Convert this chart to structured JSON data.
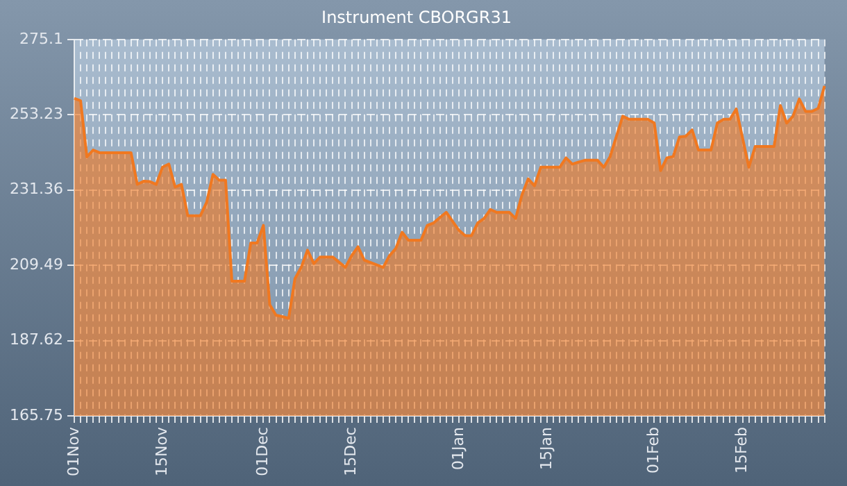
{
  "chart_data": {
    "type": "area",
    "title": "Instrument CBORGR31",
    "categories": [
      "01Nov",
      null,
      null,
      null,
      null,
      null,
      null,
      null,
      null,
      null,
      null,
      null,
      null,
      null,
      "15Nov",
      null,
      null,
      null,
      null,
      null,
      null,
      null,
      null,
      null,
      null,
      null,
      null,
      null,
      null,
      null,
      "01Dec",
      null,
      null,
      null,
      null,
      null,
      null,
      null,
      null,
      null,
      null,
      null,
      null,
      null,
      "15Dec",
      null,
      null,
      null,
      null,
      null,
      null,
      null,
      null,
      null,
      null,
      null,
      null,
      null,
      null,
      null,
      null,
      "01Jan",
      null,
      null,
      null,
      null,
      null,
      null,
      null,
      null,
      null,
      null,
      null,
      null,
      null,
      "15Jan",
      null,
      null,
      null,
      null,
      null,
      null,
      null,
      null,
      null,
      null,
      null,
      null,
      null,
      null,
      null,
      null,
      "01Feb",
      null,
      null,
      null,
      null,
      null,
      null,
      null,
      null,
      null,
      null,
      null,
      null,
      null,
      "15Feb",
      null,
      null,
      null,
      null,
      null,
      null,
      null,
      null,
      null,
      null,
      null,
      null,
      null
    ],
    "series": [
      {
        "color": "#f07820",
        "values": [
          258.0,
          257.3,
          241.0,
          243.0,
          242.2,
          242.2,
          242.2,
          242.2,
          242.2,
          242.2,
          233.0,
          233.9,
          233.8,
          233.0,
          238.0,
          238.9,
          232.2,
          233.0,
          223.9,
          223.9,
          223.9,
          227.8,
          235.9,
          234.2,
          234.2,
          204.9,
          204.9,
          204.9,
          216.0,
          216.0,
          221.1,
          198.1,
          195.0,
          194.6,
          194.1,
          205.6,
          208.9,
          213.9,
          210.0,
          211.9,
          211.9,
          211.9,
          210.4,
          208.9,
          212.3,
          214.9,
          211.0,
          210.3,
          209.6,
          208.9,
          212.3,
          214.4,
          219.1,
          216.8,
          216.8,
          216.8,
          221.1,
          221.8,
          223.4,
          224.9,
          222.3,
          219.7,
          218.1,
          218.1,
          221.8,
          223.1,
          225.7,
          224.9,
          224.9,
          224.9,
          223.1,
          229.9,
          234.6,
          232.6,
          238.0,
          238.0,
          238.0,
          238.0,
          240.7,
          238.9,
          239.5,
          240.0,
          240.0,
          240.0,
          238.0,
          241.1,
          247.0,
          252.8,
          251.9,
          251.9,
          251.9,
          251.9,
          250.8,
          237.0,
          240.7,
          241.1,
          246.8,
          247.0,
          248.8,
          243.0,
          243.0,
          243.0,
          250.8,
          251.9,
          251.9,
          254.9,
          246.5,
          238.0,
          244.0,
          244.0,
          244.0,
          244.0,
          255.9,
          250.8,
          252.8,
          257.8,
          254.2,
          254.2,
          255.1,
          261.6
        ]
      }
    ],
    "ylim": [
      165.75,
      275.1
    ],
    "yticks": [
      165.75,
      187.62,
      209.49,
      231.36,
      253.23,
      275.1
    ],
    "grid": true
  }
}
